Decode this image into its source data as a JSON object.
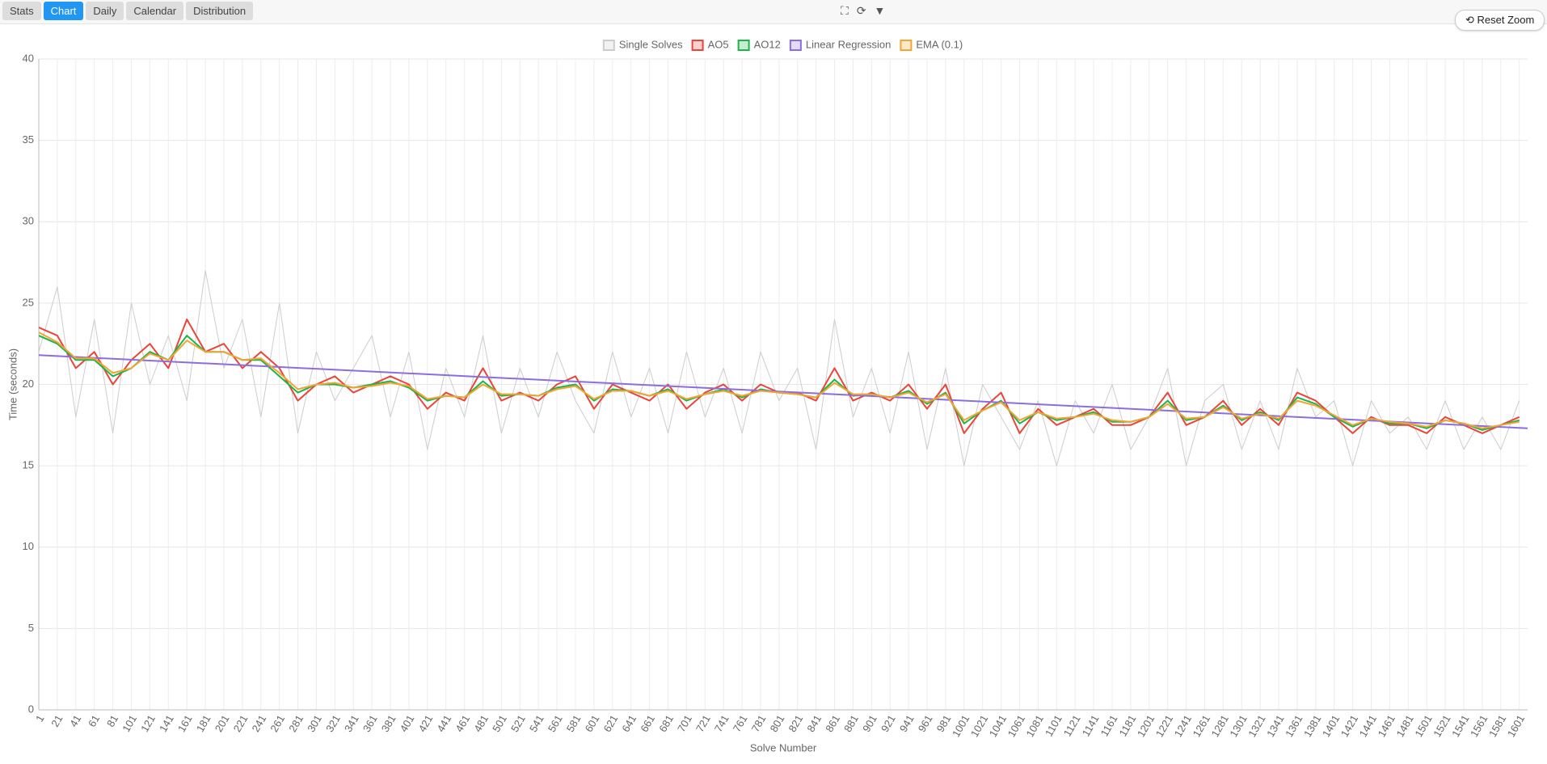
{
  "ui": {
    "tabs": [
      "Stats",
      "Chart",
      "Daily",
      "Calendar",
      "Distribution"
    ],
    "active_tab": "Chart",
    "icons": [
      "⛶",
      "⟳",
      "▼"
    ],
    "reset_zoom": "⟲ Reset Zoom"
  },
  "chart_data": {
    "type": "line",
    "x_label": "Solve Number",
    "y_label": "Time (seconds)",
    "xlim": [
      1,
      1610
    ],
    "ylim": [
      0,
      40
    ],
    "yticks": [
      0,
      5,
      10,
      15,
      20,
      25,
      30,
      35,
      40
    ],
    "xticks": [
      1,
      21,
      41,
      61,
      81,
      101,
      121,
      141,
      161,
      181,
      201,
      221,
      241,
      261,
      281,
      301,
      321,
      341,
      361,
      381,
      401,
      421,
      441,
      461,
      481,
      501,
      521,
      541,
      561,
      581,
      601,
      621,
      641,
      661,
      681,
      701,
      721,
      741,
      761,
      781,
      801,
      821,
      841,
      861,
      881,
      901,
      921,
      941,
      961,
      981,
      1001,
      1021,
      1041,
      1061,
      1081,
      1101,
      1121,
      1141,
      1161,
      1181,
      1201,
      1221,
      1241,
      1261,
      1281,
      1301,
      1321,
      1341,
      1361,
      1381,
      1401,
      1421,
      1441,
      1461,
      1481,
      1501,
      1521,
      1541,
      1561,
      1581,
      1601
    ],
    "grid": true,
    "x": [
      1,
      21,
      41,
      61,
      81,
      101,
      121,
      141,
      161,
      181,
      201,
      221,
      241,
      261,
      281,
      301,
      321,
      341,
      361,
      381,
      401,
      421,
      441,
      461,
      481,
      501,
      521,
      541,
      561,
      581,
      601,
      621,
      641,
      661,
      681,
      701,
      721,
      741,
      761,
      781,
      801,
      821,
      841,
      861,
      881,
      901,
      921,
      941,
      961,
      981,
      1001,
      1021,
      1041,
      1061,
      1081,
      1101,
      1121,
      1141,
      1161,
      1181,
      1201,
      1221,
      1241,
      1261,
      1281,
      1301,
      1321,
      1341,
      1361,
      1381,
      1401,
      1421,
      1441,
      1461,
      1481,
      1501,
      1521,
      1541,
      1561,
      1581,
      1601
    ],
    "series": [
      {
        "name": "Single Solves",
        "color": "#cccccc",
        "values": [
          22,
          26,
          18,
          24,
          17,
          25,
          20,
          23,
          19,
          27,
          21,
          24,
          18,
          25,
          17,
          22,
          19,
          21,
          23,
          18,
          22,
          16,
          21,
          18,
          23,
          17,
          21,
          18,
          22,
          19,
          17,
          22,
          18,
          21,
          17,
          22,
          18,
          21,
          17,
          22,
          19,
          21,
          16,
          24,
          18,
          21,
          17,
          22,
          16,
          21,
          15,
          20,
          18,
          16,
          19,
          15,
          19,
          17,
          20,
          16,
          18,
          21,
          15,
          19,
          20,
          16,
          19,
          16,
          21,
          18,
          19,
          15,
          19,
          17,
          18,
          16,
          19,
          16,
          18,
          16,
          19
        ]
      },
      {
        "name": "AO5",
        "color": "#e8453c",
        "values": [
          23.5,
          23,
          21,
          22,
          20,
          21.5,
          22.5,
          21,
          24,
          22,
          22.5,
          21,
          22,
          21,
          19,
          20,
          20.5,
          19.5,
          20,
          20.5,
          20,
          18.5,
          19.5,
          19,
          21,
          19,
          19.5,
          19,
          20,
          20.5,
          18.5,
          20,
          19.5,
          19,
          20,
          18.5,
          19.5,
          20,
          19,
          20,
          19.5,
          19.5,
          19,
          21,
          19,
          19.5,
          19,
          20,
          18.5,
          20,
          17,
          18.5,
          19.5,
          17,
          18.5,
          17.5,
          18,
          18.5,
          17.5,
          17.5,
          18,
          19.5,
          17.5,
          18,
          19,
          17.5,
          18.5,
          17.5,
          19.5,
          19,
          18,
          17,
          18,
          17.5,
          17.5,
          17,
          18,
          17.5,
          17,
          17.5,
          18
        ]
      },
      {
        "name": "AO12",
        "color": "#1fb34a",
        "values": [
          23,
          22.5,
          21.5,
          21.5,
          20.5,
          21,
          22,
          21.5,
          23,
          22,
          22,
          21.5,
          21.5,
          20.5,
          19.5,
          20,
          20,
          19.8,
          20,
          20.2,
          19.8,
          19,
          19.3,
          19.2,
          20.2,
          19.3,
          19.4,
          19.3,
          19.8,
          20,
          19,
          19.7,
          19.6,
          19.3,
          19.7,
          19,
          19.4,
          19.7,
          19.2,
          19.7,
          19.5,
          19.4,
          19.2,
          20.3,
          19.3,
          19.4,
          19.2,
          19.6,
          18.8,
          19.5,
          17.6,
          18.4,
          19,
          17.6,
          18.3,
          17.8,
          18,
          18.3,
          17.7,
          17.7,
          18,
          19,
          17.8,
          18,
          18.7,
          17.8,
          18.3,
          17.8,
          19.2,
          18.8,
          18,
          17.4,
          17.9,
          17.6,
          17.6,
          17.3,
          17.8,
          17.6,
          17.2,
          17.5,
          17.8
        ]
      },
      {
        "name": "Linear Regression",
        "color": "#8a6ee0",
        "x": [
          1,
          1610
        ],
        "values": [
          21.8,
          17.3
        ]
      },
      {
        "name": "EMA (0.1)",
        "color": "#f0a535",
        "values": [
          23.2,
          22.6,
          21.6,
          21.6,
          20.7,
          21,
          21.9,
          21.5,
          22.7,
          22,
          22,
          21.5,
          21.6,
          20.7,
          19.7,
          20,
          20.1,
          19.8,
          19.9,
          20.1,
          19.9,
          19.1,
          19.3,
          19.2,
          20,
          19.4,
          19.4,
          19.3,
          19.7,
          19.9,
          19.1,
          19.6,
          19.6,
          19.3,
          19.6,
          19.1,
          19.4,
          19.6,
          19.3,
          19.6,
          19.5,
          19.4,
          19.2,
          20.1,
          19.4,
          19.4,
          19.2,
          19.5,
          18.9,
          19.4,
          17.8,
          18.4,
          18.9,
          17.8,
          18.3,
          17.9,
          18,
          18.2,
          17.8,
          17.7,
          18,
          18.8,
          17.9,
          18,
          18.6,
          17.9,
          18.2,
          17.9,
          19,
          18.7,
          18.1,
          17.5,
          17.9,
          17.7,
          17.6,
          17.4,
          17.8,
          17.6,
          17.3,
          17.5,
          17.7
        ]
      }
    ]
  }
}
